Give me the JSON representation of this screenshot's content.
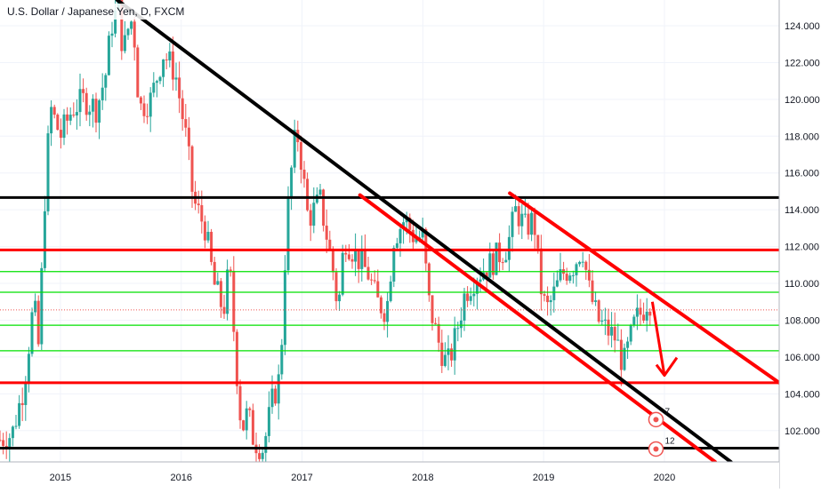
{
  "chart_data": {
    "type": "candlestick",
    "title": "U.S. Dollar / Japanese Yen, D, FXCM",
    "symbol": "USDJPY",
    "timeframe": "D",
    "exchange": "FXCM",
    "x_axis_labels": [
      "2015",
      "2016",
      "2017",
      "2018",
      "2019",
      "2020"
    ],
    "y_axis_ticks": [
      102.0,
      104.0,
      106.0,
      108.0,
      110.0,
      112.0,
      114.0,
      116.0,
      118.0,
      120.0,
      122.0,
      124.0
    ],
    "ylim": [
      100.3,
      125.4
    ],
    "xlim": [
      2014.5,
      2020.95
    ],
    "price_series": [
      [
        2014.5,
        101.5
      ],
      [
        2014.6,
        101.8
      ],
      [
        2014.7,
        104.5
      ],
      [
        2014.78,
        109.0
      ],
      [
        2014.82,
        106.5
      ],
      [
        2014.88,
        116.0
      ],
      [
        2014.92,
        119.5
      ],
      [
        2015.0,
        118.0
      ],
      [
        2015.1,
        119.5
      ],
      [
        2015.2,
        120.0
      ],
      [
        2015.3,
        119.5
      ],
      [
        2015.38,
        121.5
      ],
      [
        2015.42,
        124.0
      ],
      [
        2015.48,
        125.0
      ],
      [
        2015.52,
        122.5
      ],
      [
        2015.58,
        124.5
      ],
      [
        2015.62,
        123.0
      ],
      [
        2015.65,
        119.5
      ],
      [
        2015.75,
        120.0
      ],
      [
        2015.85,
        122.5
      ],
      [
        2015.95,
        121.5
      ],
      [
        2016.05,
        117.5
      ],
      [
        2016.1,
        114.5
      ],
      [
        2016.2,
        113.0
      ],
      [
        2016.27,
        110.0
      ],
      [
        2016.35,
        108.5
      ],
      [
        2016.4,
        111.0
      ],
      [
        2016.45,
        106.0
      ],
      [
        2016.5,
        102.0
      ],
      [
        2016.55,
        103.0
      ],
      [
        2016.6,
        101.5
      ],
      [
        2016.68,
        101.0
      ],
      [
        2016.75,
        103.5
      ],
      [
        2016.82,
        105.0
      ],
      [
        2016.87,
        113.0
      ],
      [
        2016.93,
        117.5
      ],
      [
        2016.97,
        118.0
      ],
      [
        2017.05,
        113.5
      ],
      [
        2017.15,
        114.5
      ],
      [
        2017.25,
        111.0
      ],
      [
        2017.3,
        108.5
      ],
      [
        2017.35,
        112.5
      ],
      [
        2017.45,
        111.5
      ],
      [
        2017.55,
        110.5
      ],
      [
        2017.62,
        109.0
      ],
      [
        2017.7,
        108.5
      ],
      [
        2017.76,
        112.5
      ],
      [
        2017.85,
        113.5
      ],
      [
        2017.93,
        112.5
      ],
      [
        2018.0,
        112.5
      ],
      [
        2018.05,
        109.0
      ],
      [
        2018.12,
        107.0
      ],
      [
        2018.2,
        105.5
      ],
      [
        2018.25,
        106.5
      ],
      [
        2018.35,
        109.5
      ],
      [
        2018.45,
        110.5
      ],
      [
        2018.55,
        111.0
      ],
      [
        2018.62,
        111.5
      ],
      [
        2018.7,
        112.0
      ],
      [
        2018.77,
        114.0
      ],
      [
        2018.85,
        113.0
      ],
      [
        2018.92,
        113.5
      ],
      [
        2018.97,
        110.0
      ],
      [
        2019.02,
        108.5
      ],
      [
        2019.06,
        109.0
      ],
      [
        2019.15,
        110.5
      ],
      [
        2019.25,
        111.0
      ],
      [
        2019.32,
        112.0
      ],
      [
        2019.38,
        109.5
      ],
      [
        2019.45,
        108.0
      ],
      [
        2019.52,
        107.5
      ],
      [
        2019.6,
        107.0
      ],
      [
        2019.66,
        105.5
      ],
      [
        2019.7,
        106.5
      ],
      [
        2019.76,
        108.0
      ],
      [
        2019.82,
        108.5
      ],
      [
        2019.87,
        109.3
      ],
      [
        2019.9,
        108.6
      ]
    ],
    "horizontal_lines": [
      {
        "price": 114.665,
        "label": "114.665",
        "color": "#000000",
        "style": "thick"
      },
      {
        "price": 111.82,
        "label": "111.820",
        "color": "#ff0000",
        "style": "thick"
      },
      {
        "price": 110.64,
        "label": "110.640",
        "color": "#00e000",
        "style": "thin"
      },
      {
        "price": 109.519,
        "label": "109.519",
        "color": "#00e000",
        "style": "thin"
      },
      {
        "price": 108.558,
        "label": "108.558",
        "color": "#ef5350",
        "style": "dotted"
      },
      {
        "price": 107.726,
        "label": "107.726",
        "color": "#00e000",
        "style": "thin"
      },
      {
        "price": 106.339,
        "label": "106.339",
        "color": "#00e000",
        "style": "thin"
      },
      {
        "price": 104.601,
        "label": "104.601",
        "color": "#ff0000",
        "style": "thick"
      },
      {
        "price": 101.046,
        "label": "101.046",
        "color": "#000000",
        "style": "thick"
      }
    ],
    "trend_lines": [
      {
        "points": [
          [
            2015.47,
            125.4
          ],
          [
            2020.55,
            100.3
          ]
        ],
        "color": "#000000"
      },
      {
        "points": [
          [
            2017.48,
            114.8
          ],
          [
            2020.42,
            100.3
          ]
        ],
        "color": "#ff0000"
      },
      {
        "points": [
          [
            2018.72,
            114.9
          ],
          [
            2020.95,
            104.6
          ]
        ],
        "color": "#ff0000"
      }
    ],
    "projection_arrow": {
      "from": [
        2019.9,
        109.0
      ],
      "to": [
        2020.0,
        105.0
      ],
      "color": "#ff0000"
    },
    "event_markers": [
      {
        "x": 2019.93,
        "price": 102.6,
        "count": "7"
      },
      {
        "x": 2019.93,
        "price": 101.0,
        "count": "12"
      }
    ],
    "colors": {
      "up": "#26a69a",
      "down": "#ef5350",
      "axis_bg": "#ffffff",
      "text": "#131722",
      "grid": "#f0f3fa"
    }
  }
}
